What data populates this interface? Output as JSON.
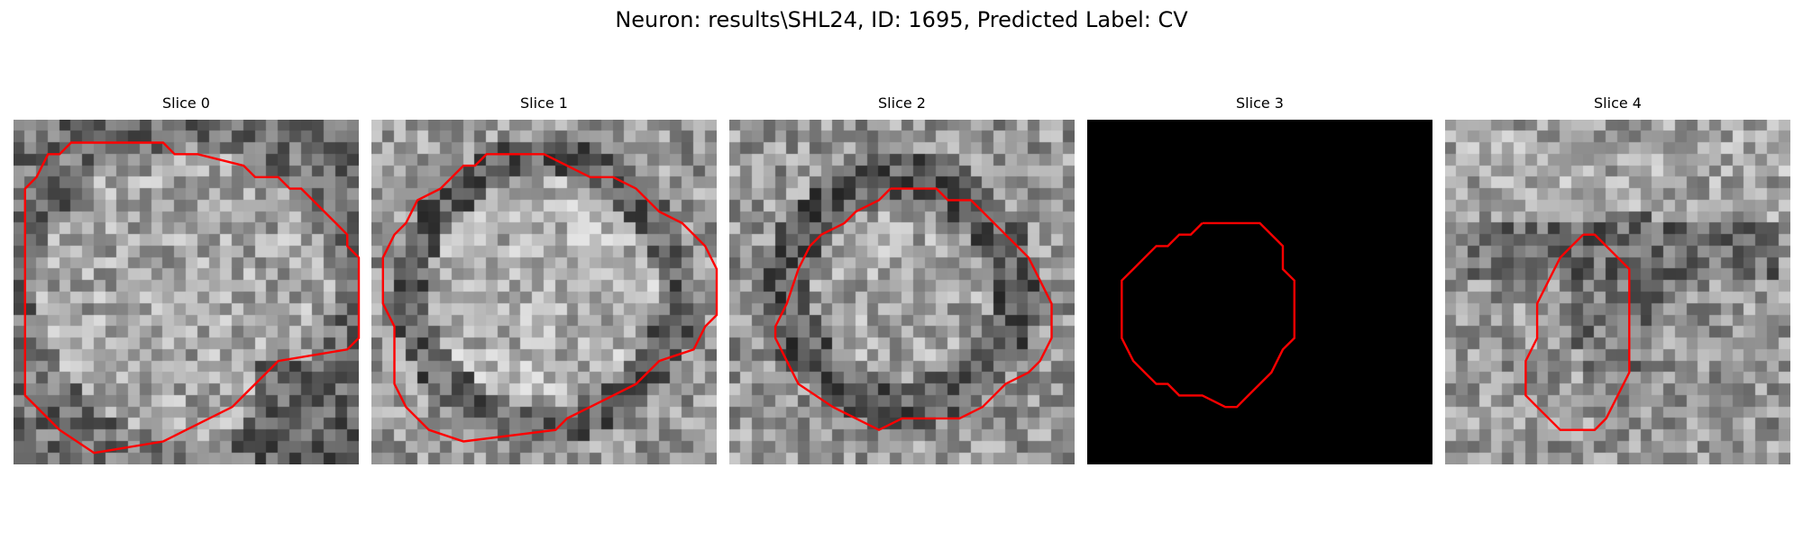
{
  "figure": {
    "title": "Neuron: results\\SHL24, ID: 1695, Predicted Label: CV"
  },
  "panels": [
    {
      "title": "Slice 0",
      "image": {
        "grid_size": 30,
        "background": "noise",
        "pattern": "soma-bright"
      },
      "contour": {
        "color": "#ff0000",
        "points": [
          [
            7,
            2
          ],
          [
            13,
            2
          ],
          [
            14,
            3
          ],
          [
            16,
            3
          ],
          [
            20,
            4
          ],
          [
            21,
            5
          ],
          [
            23,
            5
          ],
          [
            24,
            6
          ],
          [
            25,
            6
          ],
          [
            27,
            8
          ],
          [
            28,
            9
          ],
          [
            29,
            10
          ],
          [
            29,
            11
          ],
          [
            30,
            12
          ],
          [
            30,
            19
          ],
          [
            29,
            20
          ],
          [
            23,
            21
          ],
          [
            22,
            22
          ],
          [
            20,
            24
          ],
          [
            19,
            25
          ],
          [
            15,
            27
          ],
          [
            13,
            28
          ],
          [
            7,
            29
          ],
          [
            4,
            27
          ],
          [
            3,
            26
          ],
          [
            1,
            24
          ],
          [
            1,
            6
          ],
          [
            2,
            5
          ],
          [
            3,
            3
          ],
          [
            4,
            3
          ],
          [
            5,
            2
          ]
        ]
      }
    },
    {
      "title": "Slice 1",
      "image": {
        "grid_size": 30,
        "background": "noise",
        "pattern": "soma-ring"
      },
      "contour": {
        "color": "#ff0000",
        "points": [
          [
            11,
            3
          ],
          [
            15,
            3
          ],
          [
            17,
            4
          ],
          [
            19,
            5
          ],
          [
            21,
            5
          ],
          [
            23,
            6
          ],
          [
            25,
            8
          ],
          [
            27,
            9
          ],
          [
            29,
            11
          ],
          [
            30,
            13
          ],
          [
            30,
            17
          ],
          [
            29,
            18
          ],
          [
            28,
            20
          ],
          [
            25,
            21
          ],
          [
            23,
            23
          ],
          [
            21,
            24
          ],
          [
            19,
            25
          ],
          [
            17,
            26
          ],
          [
            16,
            27
          ],
          [
            8,
            28
          ],
          [
            5,
            27
          ],
          [
            3,
            25
          ],
          [
            2,
            23
          ],
          [
            2,
            18
          ],
          [
            1,
            16
          ],
          [
            1,
            12
          ],
          [
            2,
            10
          ],
          [
            3,
            9
          ],
          [
            4,
            7
          ],
          [
            6,
            6
          ],
          [
            8,
            4
          ],
          [
            9,
            4
          ],
          [
            10,
            3
          ]
        ]
      }
    },
    {
      "title": "Slice 2",
      "image": {
        "grid_size": 30,
        "background": "noise",
        "pattern": "soma-ring-dark"
      },
      "contour": {
        "color": "#ff0000",
        "points": [
          [
            14,
            6
          ],
          [
            18,
            6
          ],
          [
            19,
            7
          ],
          [
            21,
            7
          ],
          [
            22,
            8
          ],
          [
            24,
            10
          ],
          [
            25,
            11
          ],
          [
            26,
            12
          ],
          [
            27,
            14
          ],
          [
            28,
            16
          ],
          [
            28,
            19
          ],
          [
            27,
            21
          ],
          [
            26,
            22
          ],
          [
            24,
            23
          ],
          [
            22,
            25
          ],
          [
            20,
            26
          ],
          [
            15,
            26
          ],
          [
            13,
            27
          ],
          [
            11,
            26
          ],
          [
            9,
            25
          ],
          [
            6,
            23
          ],
          [
            5,
            21
          ],
          [
            4,
            19
          ],
          [
            4,
            18
          ],
          [
            5,
            16
          ],
          [
            6,
            13
          ],
          [
            7,
            11
          ],
          [
            8,
            10
          ],
          [
            10,
            9
          ],
          [
            11,
            8
          ],
          [
            13,
            7
          ]
        ]
      }
    },
    {
      "title": "Slice 3",
      "image": {
        "grid_size": 30,
        "background": "black",
        "pattern": "empty"
      },
      "contour": {
        "color": "#ff0000",
        "points": [
          [
            10,
            9
          ],
          [
            15,
            9
          ],
          [
            17,
            11
          ],
          [
            17,
            13
          ],
          [
            18,
            14
          ],
          [
            18,
            19
          ],
          [
            17,
            20
          ],
          [
            16,
            22
          ],
          [
            14,
            24
          ],
          [
            13,
            25
          ],
          [
            12,
            25
          ],
          [
            10,
            24
          ],
          [
            8,
            24
          ],
          [
            7,
            23
          ],
          [
            6,
            23
          ],
          [
            5,
            22
          ],
          [
            4,
            21
          ],
          [
            3,
            19
          ],
          [
            3,
            14
          ],
          [
            4,
            13
          ],
          [
            5,
            12
          ],
          [
            6,
            11
          ],
          [
            7,
            11
          ],
          [
            8,
            10
          ],
          [
            9,
            10
          ]
        ]
      }
    },
    {
      "title": "Slice 4",
      "image": {
        "grid_size": 30,
        "background": "noise",
        "pattern": "soma-elongated"
      },
      "contour": {
        "color": "#ff0000",
        "points": [
          [
            12,
            10
          ],
          [
            13,
            10
          ],
          [
            14,
            11
          ],
          [
            15,
            12
          ],
          [
            16,
            13
          ],
          [
            16,
            22
          ],
          [
            15,
            24
          ],
          [
            14,
            26
          ],
          [
            13,
            27
          ],
          [
            10,
            27
          ],
          [
            8,
            25
          ],
          [
            7,
            24
          ],
          [
            7,
            21
          ],
          [
            8,
            19
          ],
          [
            8,
            16
          ],
          [
            9,
            14
          ],
          [
            10,
            12
          ],
          [
            11,
            11
          ]
        ]
      }
    }
  ]
}
